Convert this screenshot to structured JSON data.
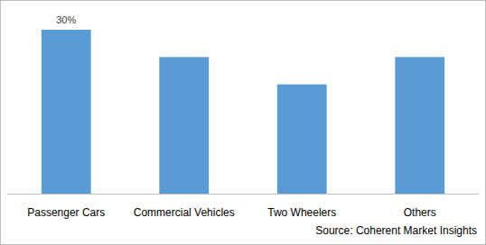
{
  "chart_data": {
    "type": "bar",
    "categories": [
      "Passenger Cars",
      "Commercial Vehicles",
      "Two Wheelers",
      "Others"
    ],
    "values": [
      30,
      25,
      20,
      25
    ],
    "value_labels": [
      "30%",
      null,
      null,
      null
    ],
    "data_labels": true,
    "color": "#5b9bd5",
    "ylim": [
      0,
      30
    ],
    "tick_labels": "x",
    "grid": false,
    "source": "Source: Coherent Market Insights"
  }
}
